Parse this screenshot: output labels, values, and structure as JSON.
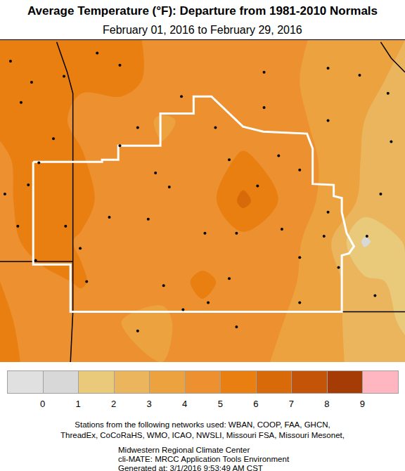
{
  "chart_data": {
    "type": "contour",
    "title": "Average Temperature (°F): Departure from 1981-2010 Normals",
    "subtitle": "February 01, 2016 to February 29, 2016",
    "tick_labels": false,
    "xlim": [
      -95.5,
      -90.5
    ],
    "ylim": [
      36.0,
      39.2
    ],
    "x": [
      -95.5,
      -95.0,
      -94.5,
      -94.0,
      -93.5,
      -93.0,
      -92.5,
      -92.0,
      -91.5,
      -91.0,
      -90.5
    ],
    "y": [
      36.0,
      36.4,
      36.8,
      37.2,
      37.6,
      38.0,
      38.4,
      38.8,
      39.2
    ],
    "z": [
      [
        5.3,
        4.7,
        4.4,
        4.1,
        4.0,
        4.2,
        4.2,
        3.9,
        3.4,
        2.6,
        2.2
      ],
      [
        5.2,
        4.6,
        4.5,
        4.0,
        3.8,
        4.6,
        4.3,
        4.0,
        3.5,
        2.4,
        1.9
      ],
      [
        5.0,
        4.7,
        5.1,
        4.4,
        4.3,
        5.3,
        4.4,
        4.2,
        3.6,
        2.2,
        1.8
      ],
      [
        4.6,
        5.4,
        4.9,
        4.3,
        4.1,
        4.2,
        4.6,
        4.4,
        3.5,
        0.8,
        2.1
      ],
      [
        4.7,
        5.6,
        5.3,
        4.4,
        4.2,
        4.3,
        6.3,
        4.8,
        3.8,
        2.8,
        2.3
      ],
      [
        4.8,
        5.5,
        5.1,
        4.3,
        4.1,
        4.4,
        5.2,
        4.6,
        3.9,
        2.9,
        2.5
      ],
      [
        5.2,
        5.4,
        4.8,
        4.4,
        3.9,
        4.2,
        4.4,
        4.3,
        3.8,
        3.0,
        2.6
      ],
      [
        5.5,
        5.3,
        5.1,
        5.4,
        4.6,
        4.3,
        4.5,
        4.2,
        3.7,
        3.2,
        2.8
      ],
      [
        5.3,
        5.2,
        5.0,
        5.3,
        4.7,
        4.5,
        4.2,
        4.3,
        3.8,
        3.3,
        3.0
      ]
    ],
    "colorbar": {
      "ticks": [
        0,
        1,
        2,
        3,
        4,
        5,
        6,
        7,
        8,
        9
      ],
      "colors": [
        "#e0e0e0",
        "#d8d8d8",
        "#e9c97a",
        "#eab55c",
        "#eba23f",
        "#ec9030",
        "#e97f10",
        "#d96a0a",
        "#c45508",
        "#a63c05",
        "#ffb6c1"
      ]
    },
    "stations": {
      "marker": "circle",
      "color": "#000000",
      "x": [
        -95.24,
        -95.11,
        -95.37,
        -94.71,
        -94.84,
        -95.02,
        -95.44,
        -95.15,
        -94.69,
        -95.28,
        -95.06,
        -94.51,
        -94.3,
        -94.02,
        -94.02,
        -93.8,
        -93.58,
        -94.15,
        -93.67,
        -93.26,
        -93.41,
        -92.97,
        -92.58,
        -92.84,
        -92.67,
        -92.32,
        -92.24,
        -92.06,
        -91.8,
        -91.45,
        -91.45,
        -92.02,
        -91.8,
        -91.5,
        -90.97,
        -90.8,
        -90.71,
        -91.06,
        -92.24,
        -91.45,
        -94.43,
        -93.48,
        -93.24,
        -92.93,
        -92.67,
        -91.8,
        -91.32,
        -90.87,
        -92.58,
        -93.8,
        -90.67
      ],
      "y": [
        38.58,
        38.78,
        38.99,
        38.84,
        38.22,
        37.98,
        37.67,
        37.76,
        37.35,
        37.35,
        37.01,
        37.13,
        39.07,
        38.95,
        38.15,
        38.33,
        37.88,
        37.44,
        37.42,
        38.64,
        37.74,
        37.28,
        37.28,
        38.33,
        38.01,
        37.75,
        38.53,
        38.05,
        37.91,
        38.4,
        37.49,
        37.32,
        37.04,
        37.25,
        37.25,
        37.67,
        38.67,
        38.85,
        38.88,
        38.92,
        36.8,
        36.76,
        36.52,
        36.59,
        36.83,
        36.59,
        36.94,
        36.66,
        36.35,
        36.31,
        38.19
      ]
    },
    "outline": {
      "color": "#ffffff",
      "x": [
        -95.09,
        -94.24,
        -94.24,
        -94.04,
        -94.04,
        -93.52,
        -93.52,
        -93.11,
        -93.11,
        -92.89,
        -92.5,
        -92.25,
        -91.71,
        -91.64,
        -91.64,
        -91.38,
        -91.38,
        -91.28,
        -91.28,
        -91.22,
        -91.13,
        -91.19,
        -91.28,
        -91.28,
        -94.63,
        -94.63,
        -95.09,
        -95.09
      ],
      "y": [
        37.99,
        37.99,
        38.01,
        38.01,
        38.15,
        38.15,
        38.47,
        38.47,
        38.64,
        38.64,
        38.34,
        38.29,
        38.27,
        38.12,
        37.77,
        37.76,
        37.65,
        37.63,
        37.49,
        37.28,
        37.15,
        37.08,
        37.06,
        36.5,
        36.5,
        36.97,
        36.97,
        37.99
      ]
    },
    "borders": [
      {
        "color": "#000000",
        "x": [
          -94.8,
          -94.67,
          -94.6,
          -94.6,
          -94.63
        ],
        "y": [
          39.18,
          38.88,
          38.67,
          36.5,
          36.0
        ]
      },
      {
        "color": "#000000",
        "x": [
          -95.6,
          -94.6
        ],
        "y": [
          37.0,
          37.0
        ]
      },
      {
        "color": "#000000",
        "x": [
          -94.6,
          -90.5
        ],
        "y": [
          36.5,
          36.5
        ]
      },
      {
        "color": "#000000",
        "x": [
          -90.8,
          -90.67,
          -90.5
        ],
        "y": [
          39.18,
          39.02,
          38.88
        ]
      }
    ],
    "footer": [
      "Stations from the following networks used: WBAN, COOP, FAA, GHCN,",
      "ThreadEx, CoCoRaHS, WMO, ICAO, NWSLI, Missouri FSA, Missouri Mesonet,",
      "Midwestern Regional Climate Center",
      "cli-MATE: MRCC Application Tools Environment",
      "Generated at: 3/1/2016 9:53:49 AM CST"
    ]
  }
}
